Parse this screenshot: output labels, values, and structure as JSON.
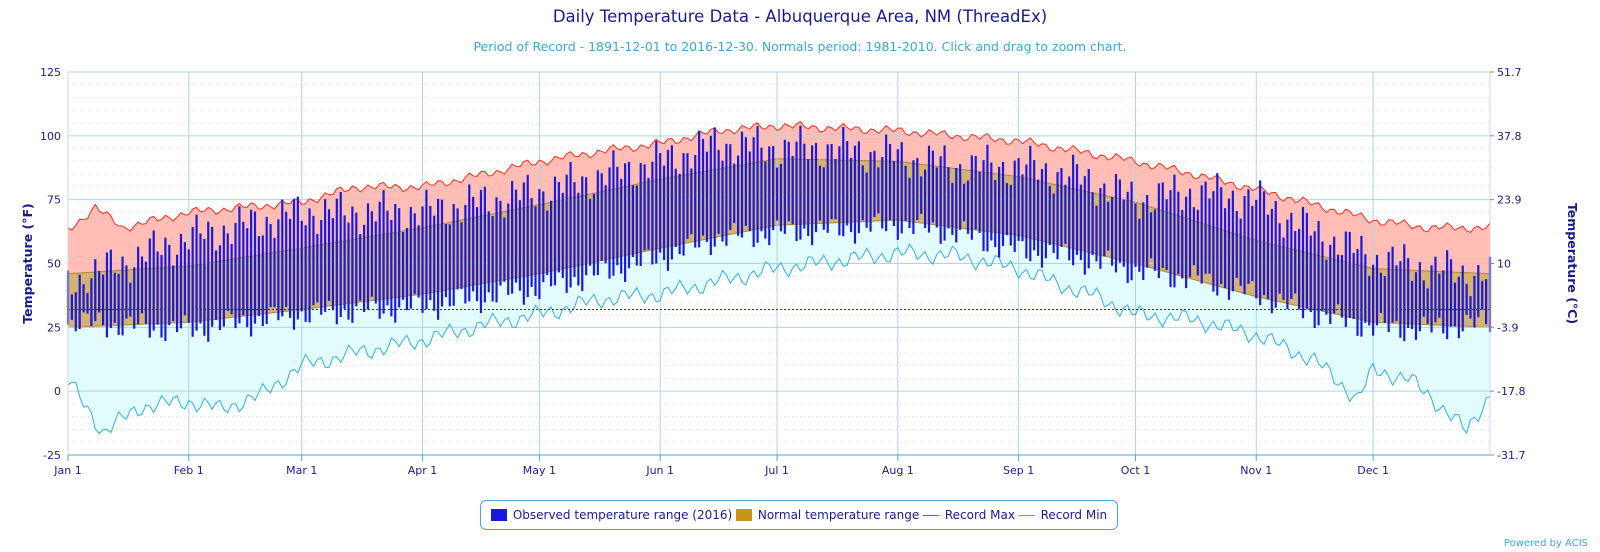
{
  "chart_data": {
    "type": "area",
    "title": "Daily Temperature Data - Albuquerque Area, NM (ThreadEx)",
    "subtitle": "Period of Record - 1891-12-01 to 2016-12-30. Normals period: 1981-2010. Click and drag to zoom chart.",
    "ylabel": "Temperature (°F)",
    "ylabel_right": "Temperature (°C)",
    "ylim": [
      -25,
      125
    ],
    "yticks": [
      -25,
      0,
      25,
      50,
      75,
      100,
      125
    ],
    "yticks_right": [
      "-31.7",
      "-17.8",
      "-3.9",
      "10",
      "23.9",
      "37.8",
      "51.7"
    ],
    "x_unit": "day of year 2016 (1 = Jan 1)",
    "xlim": [
      1,
      366
    ],
    "xticks": [
      {
        "label": "Jan 1",
        "day": 1
      },
      {
        "label": "Feb 1",
        "day": 32
      },
      {
        "label": "Mar 1",
        "day": 61
      },
      {
        "label": "Apr 1",
        "day": 92
      },
      {
        "label": "May 1",
        "day": 122
      },
      {
        "label": "Jun 1",
        "day": 153
      },
      {
        "label": "Jul 1",
        "day": 183
      },
      {
        "label": "Aug 1",
        "day": 214
      },
      {
        "label": "Sep 1",
        "day": 245
      },
      {
        "label": "Oct 1",
        "day": 275
      },
      {
        "label": "Nov 1",
        "day": 306
      },
      {
        "label": "Dec 1",
        "day": 336
      }
    ],
    "freezing_line": 32,
    "grid": true,
    "legend_position": "bottom",
    "series": [
      {
        "name": "Record Max",
        "kind": "line",
        "color": "#ff2a1a",
        "points": [
          [
            1,
            63
          ],
          [
            8,
            72
          ],
          [
            15,
            64
          ],
          [
            32,
            70
          ],
          [
            46,
            72
          ],
          [
            61,
            74
          ],
          [
            75,
            80
          ],
          [
            92,
            80
          ],
          [
            108,
            85
          ],
          [
            122,
            90
          ],
          [
            138,
            94
          ],
          [
            153,
            97
          ],
          [
            168,
            102
          ],
          [
            183,
            104
          ],
          [
            198,
            103
          ],
          [
            214,
            102
          ],
          [
            229,
            100
          ],
          [
            245,
            98
          ],
          [
            260,
            94
          ],
          [
            275,
            90
          ],
          [
            290,
            85
          ],
          [
            306,
            79
          ],
          [
            321,
            73
          ],
          [
            336,
            67
          ],
          [
            350,
            64
          ],
          [
            366,
            64
          ]
        ]
      },
      {
        "name": "Record Min",
        "kind": "line",
        "color": "#2eaee6",
        "points": [
          [
            1,
            4
          ],
          [
            10,
            -16
          ],
          [
            20,
            -6
          ],
          [
            32,
            -4
          ],
          [
            40,
            -7
          ],
          [
            50,
            -2
          ],
          [
            61,
            10
          ],
          [
            75,
            15
          ],
          [
            92,
            20
          ],
          [
            108,
            26
          ],
          [
            122,
            30
          ],
          [
            138,
            36
          ],
          [
            153,
            38
          ],
          [
            168,
            43
          ],
          [
            183,
            48
          ],
          [
            198,
            51
          ],
          [
            214,
            54
          ],
          [
            229,
            53
          ],
          [
            245,
            48
          ],
          [
            255,
            42
          ],
          [
            265,
            37
          ],
          [
            275,
            30
          ],
          [
            290,
            28
          ],
          [
            306,
            22
          ],
          [
            321,
            12
          ],
          [
            332,
            -3
          ],
          [
            336,
            8
          ],
          [
            345,
            5
          ],
          [
            355,
            -8
          ],
          [
            360,
            -16
          ],
          [
            366,
            -1
          ]
        ]
      },
      {
        "name": "Normal temperature range",
        "kind": "band",
        "color": "#c8941a",
        "upper": [
          [
            1,
            46
          ],
          [
            32,
            49
          ],
          [
            61,
            56
          ],
          [
            92,
            64
          ],
          [
            122,
            73
          ],
          [
            153,
            83
          ],
          [
            183,
            91
          ],
          [
            214,
            90
          ],
          [
            245,
            84
          ],
          [
            275,
            74
          ],
          [
            306,
            59
          ],
          [
            336,
            48
          ],
          [
            366,
            46
          ]
        ],
        "lower": [
          [
            1,
            25
          ],
          [
            32,
            27
          ],
          [
            61,
            32
          ],
          [
            92,
            38
          ],
          [
            122,
            46
          ],
          [
            153,
            56
          ],
          [
            183,
            65
          ],
          [
            214,
            67
          ],
          [
            245,
            61
          ],
          [
            275,
            50
          ],
          [
            306,
            37
          ],
          [
            336,
            27
          ],
          [
            366,
            25
          ]
        ]
      },
      {
        "name": "Observed temperature range (2016)",
        "kind": "daily-range",
        "color": "#1a1adc",
        "ranges": [
          [
            1,
            27,
            42
          ],
          [
            32,
            24,
            60
          ],
          [
            61,
            30,
            70
          ],
          [
            92,
            33,
            70
          ],
          [
            122,
            40,
            78
          ],
          [
            153,
            52,
            90
          ],
          [
            168,
            60,
            97
          ],
          [
            183,
            62,
            95
          ],
          [
            198,
            63,
            95
          ],
          [
            214,
            65,
            92
          ],
          [
            229,
            62,
            88
          ],
          [
            245,
            55,
            88
          ],
          [
            260,
            52,
            84
          ],
          [
            275,
            47,
            75
          ],
          [
            290,
            44,
            78
          ],
          [
            306,
            38,
            75
          ],
          [
            321,
            30,
            62
          ],
          [
            336,
            25,
            52
          ],
          [
            350,
            24,
            48
          ],
          [
            366,
            27,
            45
          ]
        ]
      }
    ]
  },
  "legend": {
    "observed": "Observed temperature range (2016)",
    "normal": "Normal temperature range",
    "record_max": "Record Max",
    "record_min": "Record Min"
  },
  "credits": "Powered by ACIS",
  "colors": {
    "axis_text": "#1a1a8c",
    "record_max_fill": "#ffbdb5",
    "record_min_fill": "#e2fcfc",
    "normal_fill": "#d6b270",
    "observed": "#1a1adc",
    "grid": "#aad4ec"
  }
}
